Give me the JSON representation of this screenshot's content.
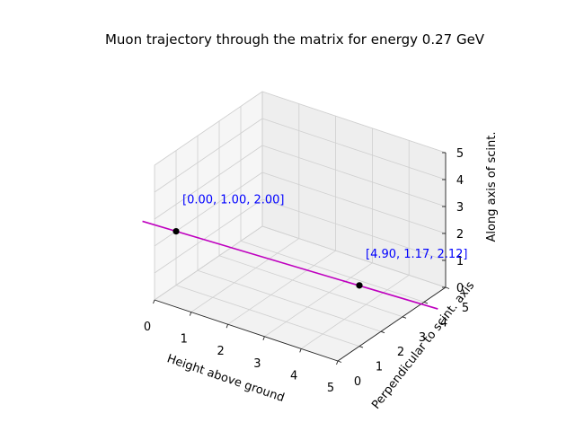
{
  "chart_data": {
    "type": "line3d",
    "title": "Muon trajectory through the matrix for energy 0.27 GeV",
    "xlabel": "Height above ground",
    "ylabel": "Perpendicular to scint. axis",
    "zlabel": "Along axis of scint.",
    "xlim": [
      0,
      5
    ],
    "ylim": [
      0,
      5
    ],
    "zlim": [
      0,
      5
    ],
    "xticks": [
      "0",
      "1",
      "2",
      "3",
      "4",
      "5"
    ],
    "yticks": [
      "0",
      "1",
      "2",
      "3",
      "4",
      "5"
    ],
    "zticks": [
      "0",
      "1",
      "2",
      "3",
      "4",
      "5"
    ],
    "grid": true,
    "trajectory": {
      "color": "#bf00bf",
      "start": [
        -0.9,
        0.97,
        1.98
      ],
      "end": [
        7.0,
        1.24,
        2.16
      ]
    },
    "points": [
      {
        "x": 0.0,
        "y": 1.0,
        "z": 2.0,
        "label": "[0.00, 1.00, 2.00]"
      },
      {
        "x": 4.9,
        "y": 1.17,
        "z": 2.12,
        "label": "[4.90, 1.17, 2.12]"
      }
    ],
    "annotation_color": "#0000ff"
  }
}
